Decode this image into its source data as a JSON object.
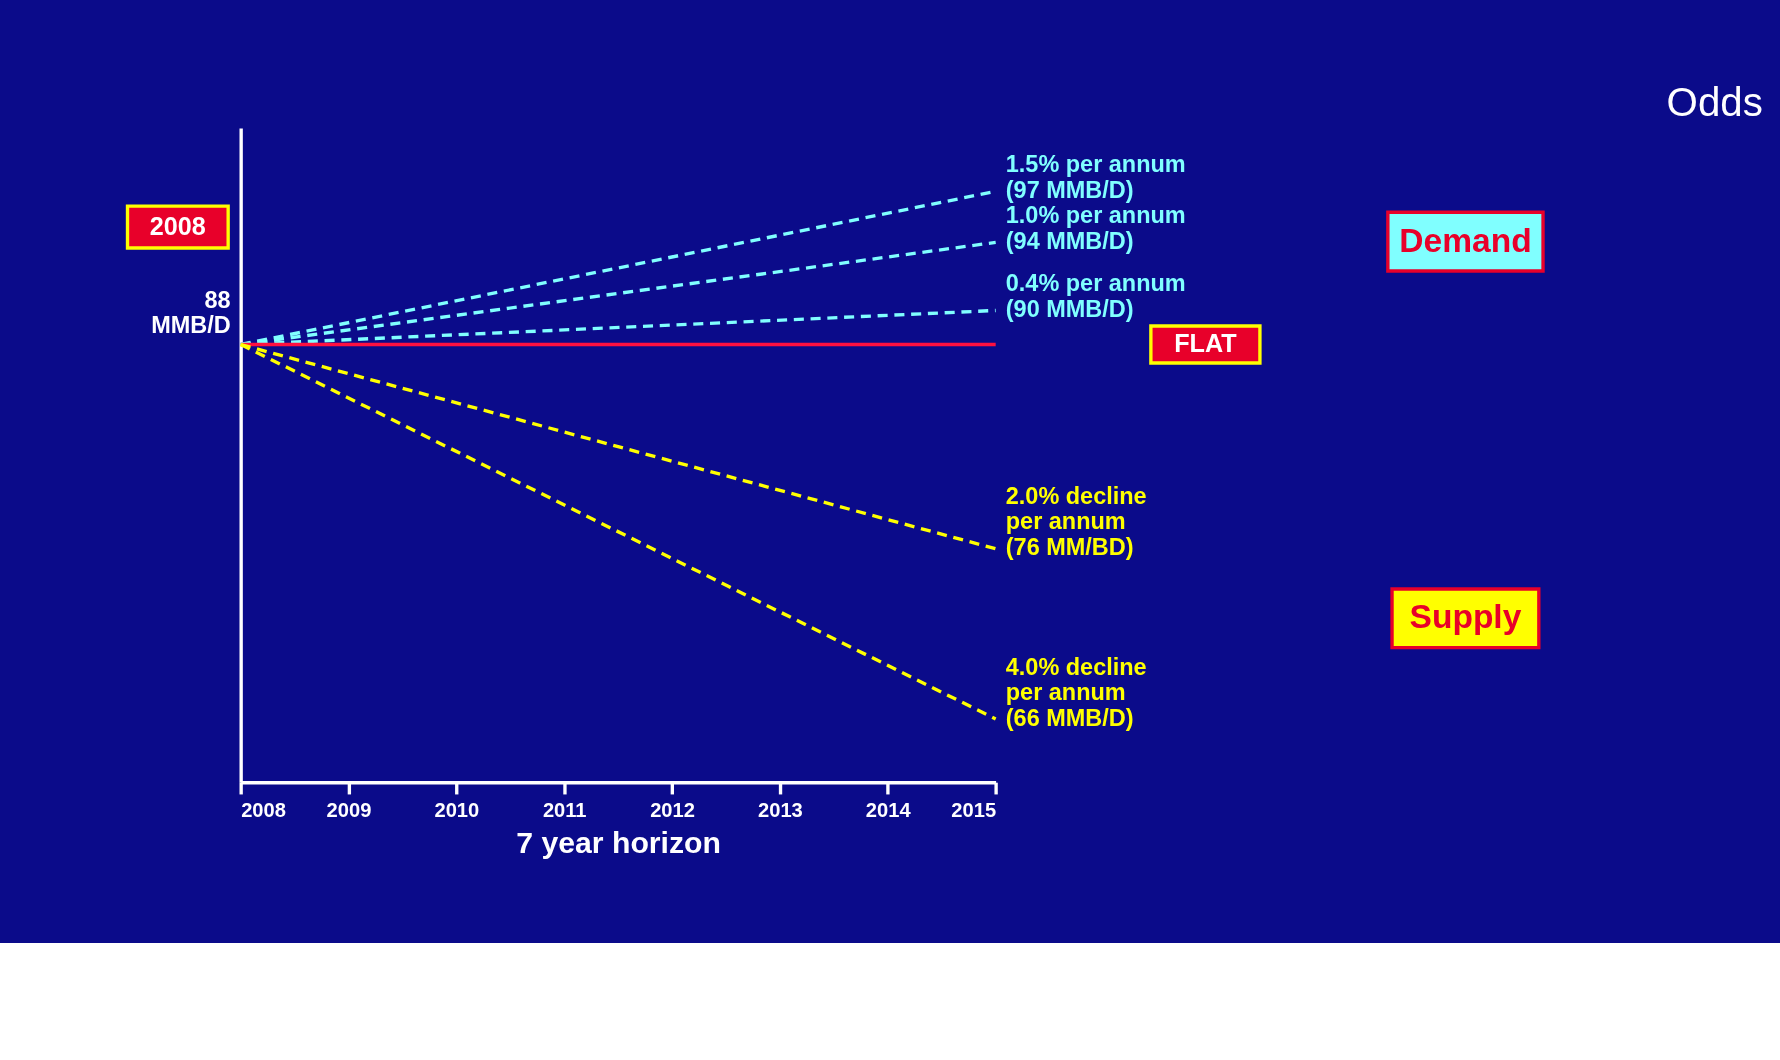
{
  "chart_data": {
    "type": "line",
    "title": "Odds",
    "xlabel": "7 year horizon",
    "x": [
      2008,
      2015
    ],
    "xlim": [
      2008,
      2015
    ],
    "xticks": [
      2008,
      2009,
      2010,
      2011,
      2012,
      2013,
      2014,
      2015
    ],
    "tick_labels": "x",
    "grid": false,
    "marker": "none",
    "series": [
      {
        "color": "#80ffff",
        "values": [
          88,
          97
        ],
        "line_style": "dashed",
        "value_labels": [
          null,
          "(97 MMB/D)"
        ]
      },
      {
        "color": "#80ffff",
        "values": [
          88,
          94
        ],
        "line_style": "dashed",
        "value_labels": [
          null,
          "(94 MMB/D)"
        ]
      },
      {
        "color": "#80ffff",
        "values": [
          88,
          90
        ],
        "line_style": "dashed",
        "value_labels": [
          null,
          "(90 MMB/D)"
        ]
      },
      {
        "color": "#ff1040",
        "values": [
          88,
          88
        ],
        "line_style": "solid",
        "value_labels": [
          "88\nMMB/D",
          null
        ]
      },
      {
        "color": "#ffff00",
        "values": [
          88,
          76
        ],
        "line_style": "dashed",
        "value_labels": [
          null,
          "(76 MM/BD)"
        ]
      },
      {
        "color": "#ffff00",
        "values": [
          88,
          66
        ],
        "line_style": "dashed",
        "value_labels": [
          null,
          "(66 MMB/D)"
        ]
      }
    ],
    "annotations": [
      "1.5% per annum",
      "1.0% per annum",
      "0.4% per annum",
      "2.0% decline\nper annum",
      "4.0% decline\nper annum",
      "FLAT",
      "2008",
      "Demand",
      "Supply"
    ]
  }
}
